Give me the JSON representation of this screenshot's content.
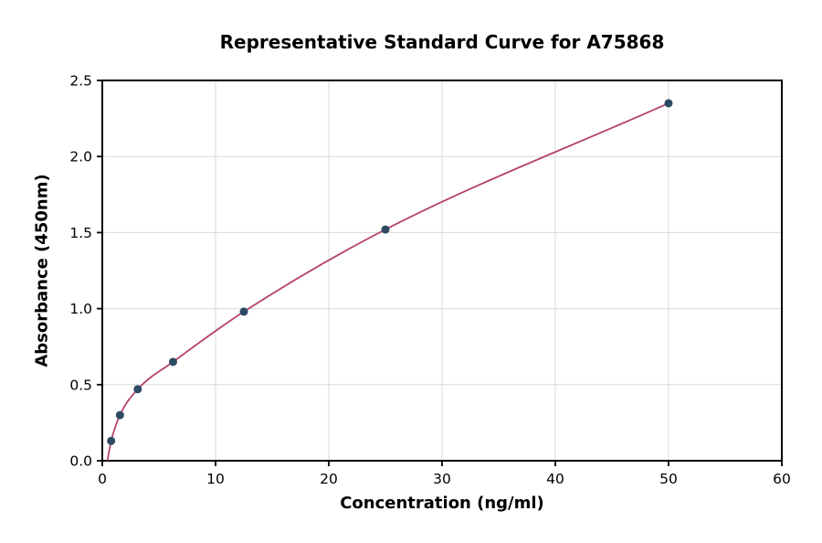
{
  "chart_data": {
    "type": "scatter",
    "title": "Representative Standard Curve for A75868",
    "xlabel": "Concentration (ng/ml)",
    "ylabel": "Absorbance (450nm)",
    "xlim": [
      0,
      60
    ],
    "ylim": [
      0,
      2.5
    ],
    "x_ticks": [
      0,
      10,
      20,
      30,
      40,
      50,
      60
    ],
    "x_tick_labels": [
      "0",
      "10",
      "20",
      "30",
      "40",
      "50",
      "60"
    ],
    "y_ticks": [
      0,
      0.5,
      1.0,
      1.5,
      2.0,
      2.5
    ],
    "y_tick_labels": [
      "0.0",
      "0.5",
      "1.0",
      "1.5",
      "2.0",
      "2.5"
    ],
    "grid": true,
    "legend_position": "none",
    "points": [
      {
        "x": 0.78,
        "y": 0.13
      },
      {
        "x": 1.56,
        "y": 0.3
      },
      {
        "x": 3.13,
        "y": 0.47
      },
      {
        "x": 6.25,
        "y": 0.65
      },
      {
        "x": 12.5,
        "y": 0.98
      },
      {
        "x": 25,
        "y": 1.52
      },
      {
        "x": 50,
        "y": 2.35
      }
    ],
    "curve": {
      "style": "monotone-spline-through-points",
      "start_anchor": {
        "x": 0.45,
        "y": 0.0
      }
    },
    "colors": {
      "curve": "#b5446e",
      "points": "#2d4a63",
      "grid": "#d9d9d9",
      "axes": "#000000",
      "background": "#ffffff"
    }
  }
}
